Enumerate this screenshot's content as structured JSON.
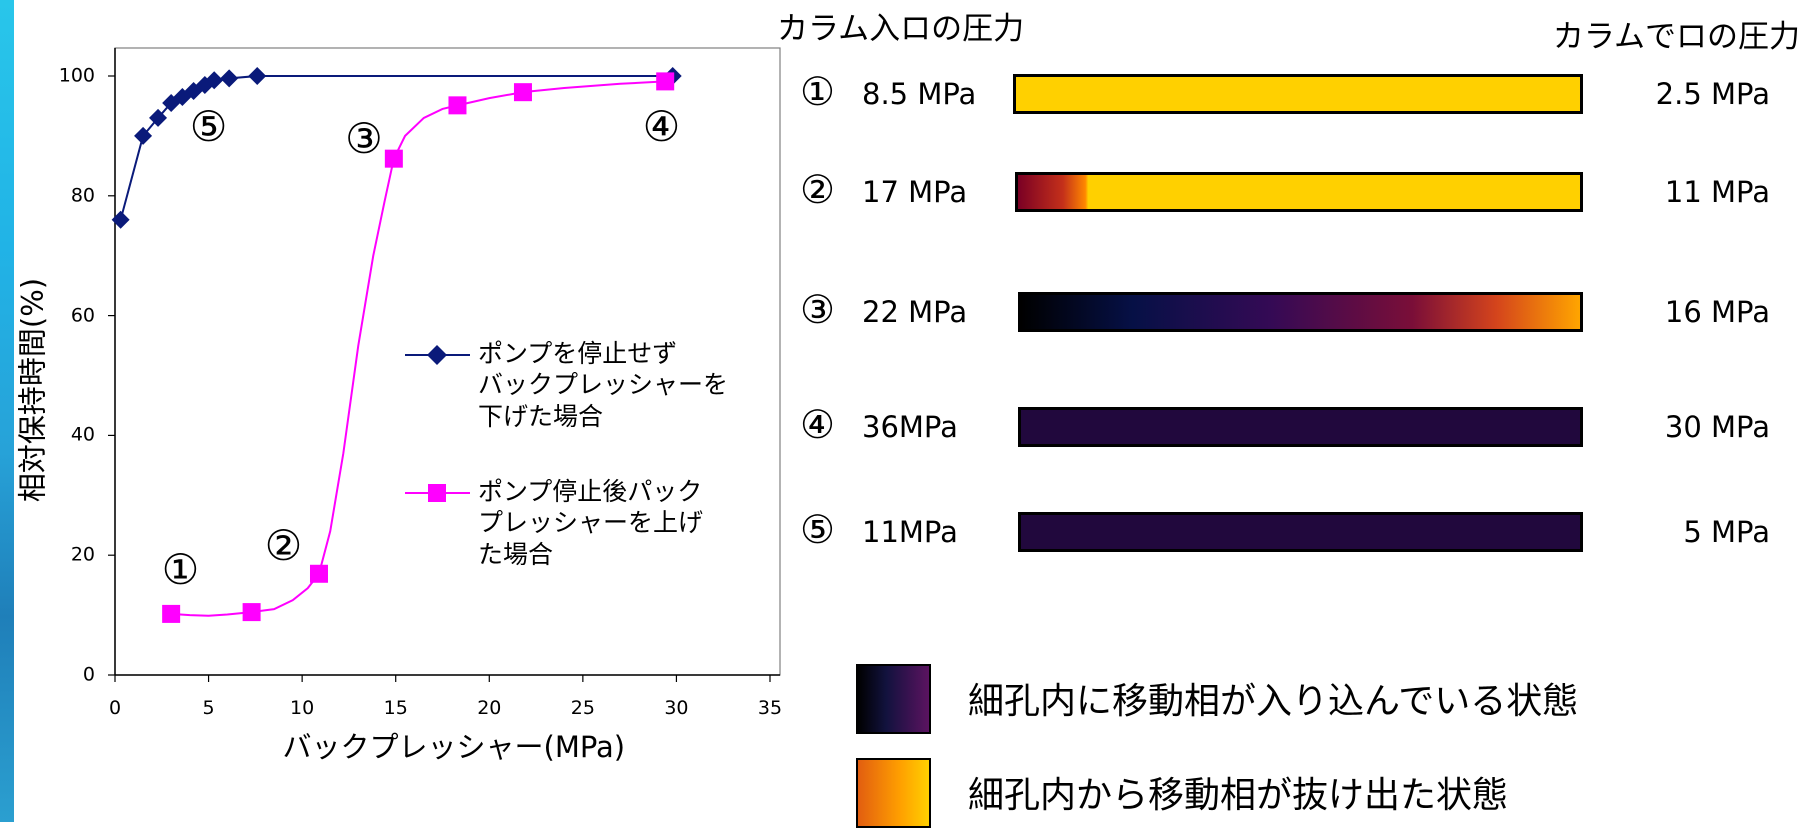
{
  "chart_data": {
    "type": "line",
    "xlabel": "バックプレッシャー(MPa)",
    "ylabel": "相対保持時間(%)",
    "xlim": [
      0,
      35
    ],
    "ylim": [
      0,
      100
    ],
    "x_ticks": [
      "0",
      "5",
      "10",
      "15",
      "20",
      "25",
      "30",
      "35"
    ],
    "y_ticks": [
      "0",
      "20",
      "40",
      "60",
      "80",
      "100"
    ],
    "grid": false,
    "legend_position": "center-right",
    "series": [
      {
        "name": "ポンプを停止せず\nバックプレッシャーを\n下げた場合",
        "color": "#0a1a7a",
        "marker": "diamond",
        "x": [
          0.3,
          1.5,
          2.3,
          3.0,
          3.6,
          4.2,
          4.8,
          5.3,
          6.1,
          7.6,
          29.8
        ],
        "y": [
          76,
          90,
          93,
          95.5,
          96.5,
          97.5,
          98.5,
          99.3,
          99.6,
          100,
          100
        ]
      },
      {
        "name": "ポンプ停止後パック\nプレッシャーを上げ\nた場合",
        "color": "#ff00ff",
        "marker": "square",
        "x": [
          3.0,
          7.3,
          10.9,
          14.9,
          18.3,
          21.8,
          29.4
        ],
        "y": [
          10.2,
          10.5,
          16.9,
          86.2,
          95.1,
          97.3,
          99.1
        ]
      }
    ],
    "curve_x": [
      3.0,
      4.0,
      5.0,
      6.0,
      7.3,
      8.5,
      9.5,
      10.3,
      10.9,
      11.5,
      12.2,
      13.0,
      13.8,
      14.4,
      14.9,
      15.5,
      16.5,
      17.5,
      18.3,
      20.0,
      21.8,
      24.0,
      27.0,
      29.4
    ],
    "curve_y": [
      10.2,
      10.0,
      9.9,
      10.1,
      10.5,
      11.0,
      12.5,
      14.5,
      16.9,
      24.0,
      37.0,
      55.0,
      70.0,
      79.0,
      86.2,
      90.0,
      93.0,
      94.5,
      95.1,
      96.3,
      97.3,
      98.0,
      98.7,
      99.1
    ],
    "point_annotations": [
      {
        "label": "①",
        "x": 3.5,
        "y": 17.5
      },
      {
        "label": "②",
        "x": 9.0,
        "y": 21.5
      },
      {
        "label": "③",
        "x": 13.3,
        "y": 89.5
      },
      {
        "label": "④",
        "x": 29.2,
        "y": 91.5
      },
      {
        "label": "⑤",
        "x": 5.0,
        "y": 91.5
      }
    ]
  },
  "diagram": {
    "inlet_header": "カラム入ロの圧力",
    "outlet_header": "カラムでロの圧力",
    "rows": [
      {
        "num": "①",
        "inlet": "8.5 MPa",
        "outlet": "2.5 MPa",
        "fill": "linear-gradient(90deg,#ffd000,#ffd000)"
      },
      {
        "num": "②",
        "inlet": "17 MPa",
        "outlet": "11 MPa",
        "fill": "linear-gradient(90deg,#7a0024 0%,#c4301a 8%,#ff8800 12%,#ffd000 12.5%,#ffd000 100%)"
      },
      {
        "num": "③",
        "inlet": "22 MPa",
        "outlet": "16 MPa",
        "fill": "linear-gradient(90deg,#000000 0%,#061046 20%,#350a55 45%,#7a0e38 70%,#d4441c 85%,#ffa500 100%)"
      },
      {
        "num": "④",
        "inlet": "36MPa",
        "outlet": "30 MPa",
        "fill": "linear-gradient(90deg,#21083d,#21083d)"
      },
      {
        "num": "⑤",
        "inlet": "11MPa",
        "outlet": "5 MPa",
        "fill": "linear-gradient(90deg,#21083d,#21083d)"
      }
    ],
    "legend": [
      {
        "text": "細孔内に移動相が入り込んでいる状態",
        "fill": "linear-gradient(90deg,#000000,#12123e 40%,#5b1360)"
      },
      {
        "text": "細孔内から移動相が抜け出た状態",
        "fill": "linear-gradient(90deg,#e25e10,#ffa000 60%,#ffd000)"
      }
    ]
  }
}
